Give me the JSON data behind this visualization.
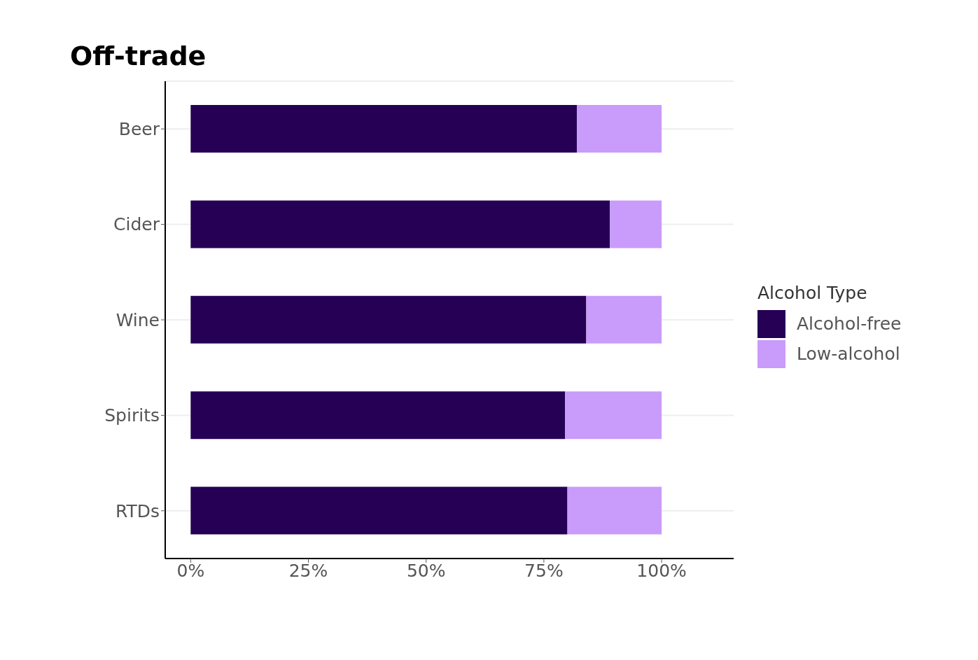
{
  "chart_data": {
    "type": "bar",
    "title": "Off-trade",
    "orientation": "horizontal",
    "stacked": true,
    "categories": [
      "Beer",
      "Cider",
      "Wine",
      "Spirits",
      "RTDs"
    ],
    "series": [
      {
        "name": "Alcohol-free",
        "color": "#250055",
        "values": [
          82,
          89,
          84,
          79.5,
          80
        ]
      },
      {
        "name": "Low-alcohol",
        "color": "#c99bfb",
        "values": [
          18,
          11,
          16,
          20.5,
          20
        ]
      }
    ],
    "xlim": [
      -5.4,
      115.3
    ],
    "xticks": [
      {
        "value": 0,
        "label": "0%"
      },
      {
        "value": 25,
        "label": "25%"
      },
      {
        "value": 50,
        "label": "50%"
      },
      {
        "value": 75,
        "label": "75%"
      },
      {
        "value": 100,
        "label": "100%"
      }
    ],
    "legend_title": "Alcohol Type",
    "legend": "right",
    "grid": "y"
  }
}
